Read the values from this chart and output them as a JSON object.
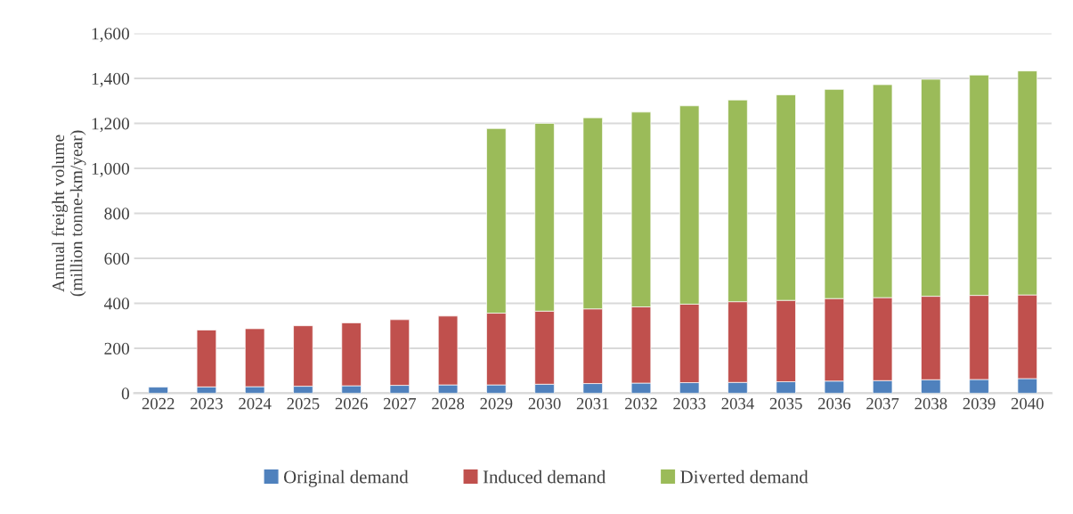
{
  "chart_data": {
    "type": "bar",
    "stacked": true,
    "ylabel": "Annual freight volume\n(million tonne-km/year)",
    "categories": [
      "2022",
      "2023",
      "2024",
      "2025",
      "2026",
      "2027",
      "2028",
      "2029",
      "2030",
      "2031",
      "2032",
      "2033",
      "2034",
      "2035",
      "2036",
      "2037",
      "2038",
      "2039",
      "2040"
    ],
    "series": [
      {
        "name": "Original demand",
        "color": "#4f81bd",
        "values": [
          27,
          28,
          29,
          31,
          33,
          35,
          37,
          37,
          40,
          43,
          45,
          47,
          48,
          51,
          54,
          56,
          60,
          61,
          65
        ]
      },
      {
        "name": "Induced demand",
        "color": "#c0504d",
        "values": [
          null,
          253,
          258,
          269,
          280,
          292,
          306,
          319,
          325,
          332,
          339,
          349,
          359,
          362,
          367,
          369,
          371,
          374,
          372
        ]
      },
      {
        "name": "Diverted demand",
        "color": "#9bbb59",
        "values": [
          null,
          null,
          null,
          null,
          null,
          null,
          null,
          821,
          835,
          850,
          866,
          882,
          897,
          914,
          930,
          947,
          965,
          980,
          996
        ]
      }
    ],
    "ylim": [
      0,
      1600
    ],
    "yticks": [
      0,
      200,
      400,
      600,
      800,
      {
        "value": 1000,
        "label": "1,000"
      },
      {
        "value": 1200,
        "label": "1,200"
      },
      {
        "value": 1400,
        "label": "1,400"
      },
      {
        "value": 1600,
        "label": "1,600"
      }
    ],
    "grid": "y",
    "legend": "bottom"
  }
}
